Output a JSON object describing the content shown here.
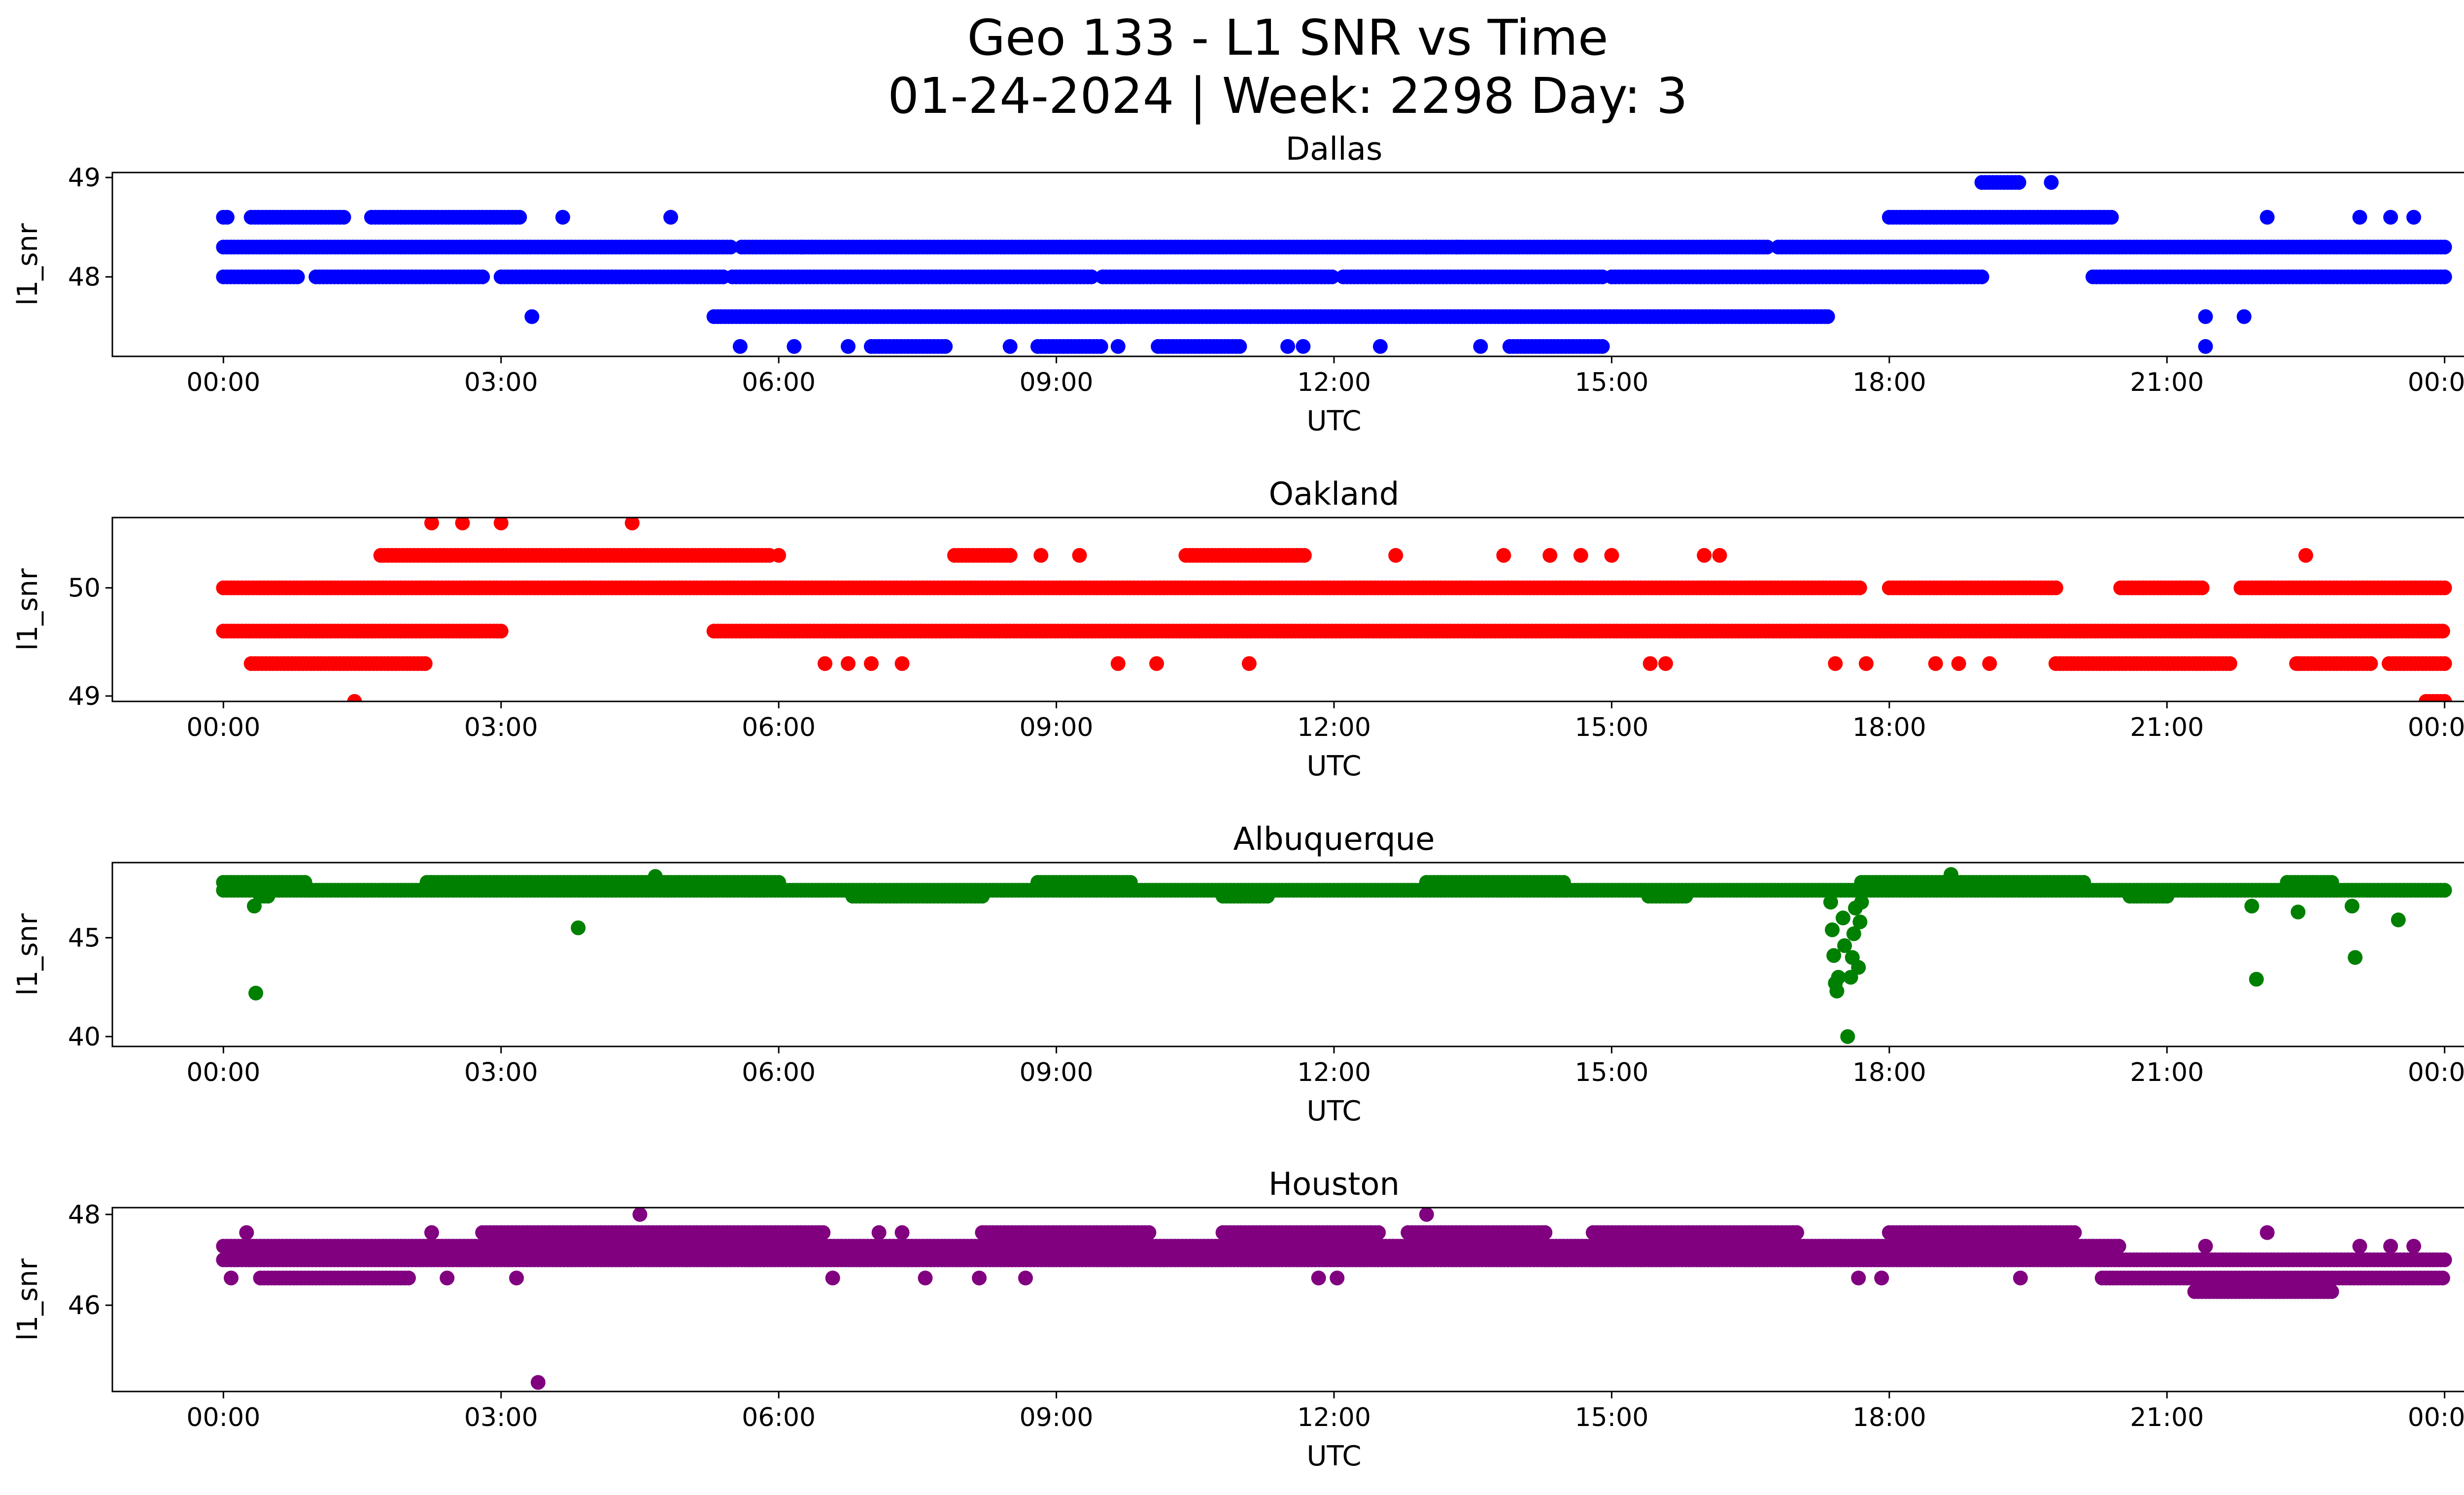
{
  "figure": {
    "title_line1": "Geo 133 - L1 SNR vs Time",
    "title_line2": "01-24-2024 | Week: 2298 Day: 3"
  },
  "chart_data": [
    {
      "type": "scatter",
      "title": "Dallas",
      "xlabel": "UTC",
      "ylabel": "l1_snr",
      "color": "#0000ff",
      "xlim": [
        "00:00",
        "24:00"
      ],
      "ylim": [
        47.2,
        49.05
      ],
      "yticks": [
        48,
        49
      ],
      "xticks": [
        "00:00",
        "03:00",
        "06:00",
        "09:00",
        "12:00",
        "15:00",
        "18:00",
        "21:00",
        "00:00"
      ],
      "series": [
        {
          "y": 48.3,
          "segments": [
            [
              0.0,
              5.5
            ],
            [
              5.6,
              16.7
            ],
            [
              16.8,
              24.0
            ]
          ]
        },
        {
          "y": 48.0,
          "segments": [
            [
              0.0,
              0.8
            ],
            [
              1.0,
              2.8
            ],
            [
              3.0,
              5.4
            ],
            [
              5.5,
              9.4
            ],
            [
              9.5,
              12.0
            ],
            [
              12.1,
              14.9
            ],
            [
              15.0,
              19.0
            ],
            [
              20.2,
              24.0
            ]
          ]
        },
        {
          "y": 47.6,
          "segments": [
            [
              5.3,
              17.3
            ]
          ]
        },
        {
          "y": 48.6,
          "segments": [
            [
              0.0,
              0.05
            ],
            [
              0.3,
              1.3
            ],
            [
              1.6,
              3.2
            ],
            [
              18.0,
              20.4
            ]
          ]
        },
        {
          "y": 47.3,
          "segments": [
            [
              7.0,
              7.8
            ],
            [
              8.8,
              9.5
            ],
            [
              10.1,
              11.0
            ],
            [
              13.9,
              14.9
            ]
          ]
        },
        {
          "y": 48.95,
          "segments": [
            [
              19.0,
              19.4
            ]
          ]
        }
      ],
      "points": [
        {
          "x": "03:20",
          "y": 47.6
        },
        {
          "x": "03:40",
          "y": 48.6
        },
        {
          "x": "04:50",
          "y": 48.6
        },
        {
          "x": "05:35",
          "y": 47.3
        },
        {
          "x": "06:10",
          "y": 47.3
        },
        {
          "x": "06:15",
          "y": 48.3
        },
        {
          "x": "06:45",
          "y": 47.3
        },
        {
          "x": "08:30",
          "y": 47.3
        },
        {
          "x": "09:40",
          "y": 47.3
        },
        {
          "x": "11:30",
          "y": 47.3
        },
        {
          "x": "11:40",
          "y": 47.3
        },
        {
          "x": "12:30",
          "y": 47.3
        },
        {
          "x": "13:00",
          "y": 48.3
        },
        {
          "x": "13:20",
          "y": 48.3
        },
        {
          "x": "13:35",
          "y": 47.3
        },
        {
          "x": "17:20",
          "y": 47.6
        },
        {
          "x": "18:40",
          "y": 48.0
        },
        {
          "x": "19:45",
          "y": 48.95
        },
        {
          "x": "21:25",
          "y": 47.6
        },
        {
          "x": "21:25",
          "y": 47.3
        },
        {
          "x": "21:50",
          "y": 47.6
        },
        {
          "x": "22:05",
          "y": 48.6
        },
        {
          "x": "23:05",
          "y": 48.6
        },
        {
          "x": "23:25",
          "y": 48.6
        },
        {
          "x": "23:40",
          "y": 48.6
        },
        {
          "x": "00:00",
          "y": 48.0
        }
      ]
    },
    {
      "type": "scatter",
      "title": "Oakland",
      "xlabel": "UTC",
      "ylabel": "l1_snr",
      "color": "#ff0000",
      "xlim": [
        "00:00",
        "24:00"
      ],
      "ylim": [
        48.95,
        50.65
      ],
      "yticks": [
        49,
        50
      ],
      "xticks": [
        "00:00",
        "03:00",
        "06:00",
        "09:00",
        "12:00",
        "15:00",
        "18:00",
        "21:00",
        "00:00"
      ],
      "series": [
        {
          "y": 50.0,
          "segments": [
            [
              0.0,
              17.7
            ],
            [
              18.0,
              19.8
            ],
            [
              20.5,
              21.4
            ],
            [
              21.8,
              24.0
            ]
          ]
        },
        {
          "y": 49.6,
          "segments": [
            [
              0.0,
              3.0
            ],
            [
              5.3,
              24.0
            ]
          ]
        },
        {
          "y": 49.3,
          "segments": [
            [
              0.3,
              2.2
            ],
            [
              19.8,
              21.7
            ],
            [
              22.4,
              23.2
            ],
            [
              23.4,
              24.0
            ]
          ]
        },
        {
          "y": 50.3,
          "segments": [
            [
              1.7,
              5.9
            ],
            [
              7.9,
              8.5
            ],
            [
              10.4,
              11.7
            ]
          ]
        },
        {
          "y": 48.95,
          "segments": [
            [
              23.8,
              24.0
            ]
          ]
        }
      ],
      "points": [
        {
          "x": "01:25",
          "y": 48.95
        },
        {
          "x": "02:15",
          "y": 50.6
        },
        {
          "x": "02:35",
          "y": 50.6
        },
        {
          "x": "03:00",
          "y": 50.6
        },
        {
          "x": "04:25",
          "y": 50.6
        },
        {
          "x": "06:00",
          "y": 50.3
        },
        {
          "x": "06:30",
          "y": 49.3
        },
        {
          "x": "06:45",
          "y": 49.3
        },
        {
          "x": "07:00",
          "y": 49.3
        },
        {
          "x": "07:20",
          "y": 49.3
        },
        {
          "x": "08:50",
          "y": 50.3
        },
        {
          "x": "09:15",
          "y": 50.3
        },
        {
          "x": "09:40",
          "y": 49.3
        },
        {
          "x": "10:05",
          "y": 49.3
        },
        {
          "x": "11:05",
          "y": 49.3
        },
        {
          "x": "12:40",
          "y": 50.3
        },
        {
          "x": "13:50",
          "y": 50.3
        },
        {
          "x": "14:20",
          "y": 50.3
        },
        {
          "x": "14:40",
          "y": 50.3
        },
        {
          "x": "15:00",
          "y": 50.3
        },
        {
          "x": "15:25",
          "y": 49.3
        },
        {
          "x": "15:35",
          "y": 49.3
        },
        {
          "x": "16:00",
          "y": 50.3
        },
        {
          "x": "16:10",
          "y": 50.3
        },
        {
          "x": "17:25",
          "y": 49.3
        },
        {
          "x": "17:45",
          "y": 49.3
        },
        {
          "x": "18:30",
          "y": 49.3
        },
        {
          "x": "18:45",
          "y": 49.3
        },
        {
          "x": "19:05",
          "y": 49.3
        },
        {
          "x": "22:25",
          "y": 49.3
        },
        {
          "x": "22:30",
          "y": 50.3
        }
      ]
    },
    {
      "type": "scatter",
      "title": "Albuquerque",
      "xlabel": "UTC",
      "ylabel": "l1_snr",
      "color": "#008000",
      "xlim": [
        "00:00",
        "24:00"
      ],
      "ylim": [
        39.5,
        48.8
      ],
      "yticks": [
        40,
        45
      ],
      "xticks": [
        "00:00",
        "03:00",
        "06:00",
        "09:00",
        "12:00",
        "15:00",
        "18:00",
        "21:00",
        "00:00"
      ],
      "series": [
        {
          "y": 47.4,
          "segments": [
            [
              0.0,
              24.0
            ]
          ]
        },
        {
          "y": 47.8,
          "segments": [
            [
              0.0,
              0.9
            ],
            [
              2.2,
              6.0
            ],
            [
              8.8,
              9.8
            ],
            [
              13.0,
              14.5
            ],
            [
              17.7,
              20.1
            ],
            [
              22.3,
              22.8
            ]
          ]
        },
        {
          "y": 47.1,
          "segments": [
            [
              6.8,
              8.2
            ],
            [
              0.4,
              0.5
            ],
            [
              10.8,
              11.3
            ],
            [
              15.4,
              15.8
            ],
            [
              20.6,
              21.0
            ]
          ]
        }
      ],
      "points": [
        {
          "x": "00:20",
          "y": 46.6
        },
        {
          "x": "00:21",
          "y": 42.2
        },
        {
          "x": "03:50",
          "y": 45.5
        },
        {
          "x": "04:40",
          "y": 48.1
        },
        {
          "x": "17:22",
          "y": 46.8
        },
        {
          "x": "17:23",
          "y": 45.4
        },
        {
          "x": "17:24",
          "y": 44.1
        },
        {
          "x": "17:25",
          "y": 42.7
        },
        {
          "x": "17:26",
          "y": 42.3
        },
        {
          "x": "17:27",
          "y": 43.0
        },
        {
          "x": "17:30",
          "y": 46.0
        },
        {
          "x": "17:31",
          "y": 44.6
        },
        {
          "x": "17:33",
          "y": 40.0
        },
        {
          "x": "17:35",
          "y": 43.0
        },
        {
          "x": "17:36",
          "y": 44.0
        },
        {
          "x": "17:37",
          "y": 45.2
        },
        {
          "x": "17:38",
          "y": 46.5
        },
        {
          "x": "17:40",
          "y": 43.5
        },
        {
          "x": "17:41",
          "y": 45.8
        },
        {
          "x": "17:42",
          "y": 46.8
        },
        {
          "x": "18:40",
          "y": 48.2
        },
        {
          "x": "21:55",
          "y": 46.6
        },
        {
          "x": "21:58",
          "y": 42.9
        },
        {
          "x": "22:25",
          "y": 46.3
        },
        {
          "x": "23:00",
          "y": 46.6
        },
        {
          "x": "23:02",
          "y": 44.0
        },
        {
          "x": "23:30",
          "y": 45.9
        }
      ]
    },
    {
      "type": "scatter",
      "title": "Houston",
      "xlabel": "UTC",
      "ylabel": "l1_snr",
      "color": "#800080",
      "xlim": [
        "00:00",
        "24:00"
      ],
      "ylim": [
        44.1,
        48.15
      ],
      "yticks": [
        46,
        48
      ],
      "xticks": [
        "00:00",
        "03:00",
        "06:00",
        "09:00",
        "12:00",
        "15:00",
        "18:00",
        "21:00",
        "00:00"
      ],
      "series": [
        {
          "y": 47.0,
          "segments": [
            [
              0.0,
              24.0
            ]
          ]
        },
        {
          "y": 47.3,
          "segments": [
            [
              0.0,
              20.5
            ]
          ]
        },
        {
          "y": 47.6,
          "segments": [
            [
              2.8,
              6.5
            ],
            [
              8.2,
              10.0
            ],
            [
              10.8,
              12.5
            ],
            [
              12.8,
              14.3
            ],
            [
              14.8,
              17.0
            ],
            [
              18.0,
              20.0
            ]
          ]
        },
        {
          "y": 46.6,
          "segments": [
            [
              0.4,
              2.0
            ],
            [
              20.3,
              24.0
            ]
          ]
        },
        {
          "y": 46.3,
          "segments": [
            [
              21.3,
              22.8
            ]
          ]
        }
      ],
      "points": [
        {
          "x": "00:05",
          "y": 46.6
        },
        {
          "x": "00:15",
          "y": 47.6
        },
        {
          "x": "02:15",
          "y": 47.6
        },
        {
          "x": "02:25",
          "y": 46.6
        },
        {
          "x": "03:10",
          "y": 46.6
        },
        {
          "x": "03:24",
          "y": 44.3
        },
        {
          "x": "04:30",
          "y": 48.0
        },
        {
          "x": "06:35",
          "y": 46.6
        },
        {
          "x": "07:05",
          "y": 47.6
        },
        {
          "x": "07:20",
          "y": 47.6
        },
        {
          "x": "07:35",
          "y": 46.6
        },
        {
          "x": "08:10",
          "y": 46.6
        },
        {
          "x": "08:40",
          "y": 46.6
        },
        {
          "x": "11:50",
          "y": 46.6
        },
        {
          "x": "12:02",
          "y": 46.6
        },
        {
          "x": "13:00",
          "y": 48.0
        },
        {
          "x": "17:40",
          "y": 46.6
        },
        {
          "x": "17:55",
          "y": 46.6
        },
        {
          "x": "19:25",
          "y": 46.6
        },
        {
          "x": "21:25",
          "y": 47.3
        },
        {
          "x": "22:05",
          "y": 47.6
        },
        {
          "x": "23:05",
          "y": 47.3
        },
        {
          "x": "23:25",
          "y": 47.3
        },
        {
          "x": "23:40",
          "y": 47.3
        }
      ]
    }
  ]
}
